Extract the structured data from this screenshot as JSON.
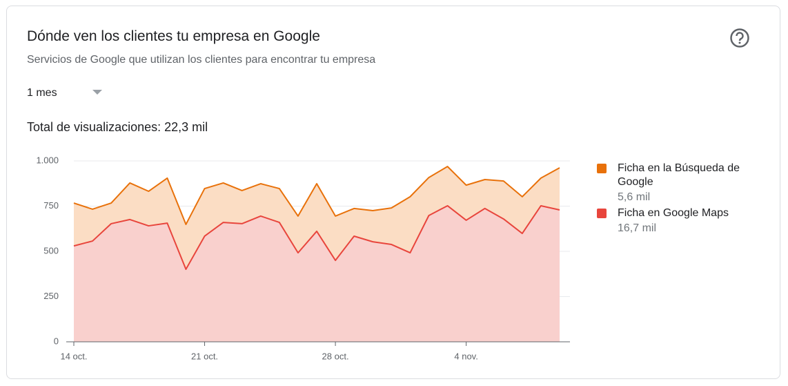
{
  "header": {
    "title": "Dónde ven los clientes tu empresa en Google",
    "subtitle": "Servicios de Google que utilizan los clientes para encontrar tu empresa"
  },
  "period": "1 mes",
  "total": "Total de visualizaciones: 22,3 mil",
  "chart_data": {
    "type": "area",
    "stacked": true,
    "categories": [
      "14 oct.",
      null,
      null,
      null,
      null,
      null,
      null,
      "21 oct.",
      null,
      null,
      null,
      null,
      null,
      null,
      "28 oct.",
      null,
      null,
      null,
      null,
      null,
      null,
      "4 nov.",
      null,
      null,
      null,
      null,
      null
    ],
    "series": [
      {
        "name": "Ficha en la Búsqueda de Google",
        "total": "5,6 mil",
        "color": "#e8710a",
        "fill": "#fbddc4",
        "values": [
          237,
          176,
          114,
          202,
          191,
          249,
          248,
          263,
          218,
          183,
          179,
          187,
          203,
          263,
          245,
          153,
          172,
          202,
          310,
          210,
          217,
          194,
          160,
          210,
          203,
          153,
          233
        ]
      },
      {
        "name": "Ficha en Google Maps",
        "total": "16,7 mil",
        "color": "#e8453c",
        "fill": "#f9d0cd",
        "values": [
          530,
          557,
          653,
          676,
          641,
          656,
          401,
          584,
          660,
          653,
          695,
          660,
          492,
          611,
          450,
          584,
          553,
          538,
          492,
          698,
          752,
          672,
          737,
          679,
          599,
          752,
          729
        ]
      }
    ],
    "ylim": [
      0,
      1000
    ],
    "yticks": [
      0,
      250,
      500,
      750,
      {
        "value": 1000,
        "label": "1.000"
      }
    ],
    "grid": true
  }
}
